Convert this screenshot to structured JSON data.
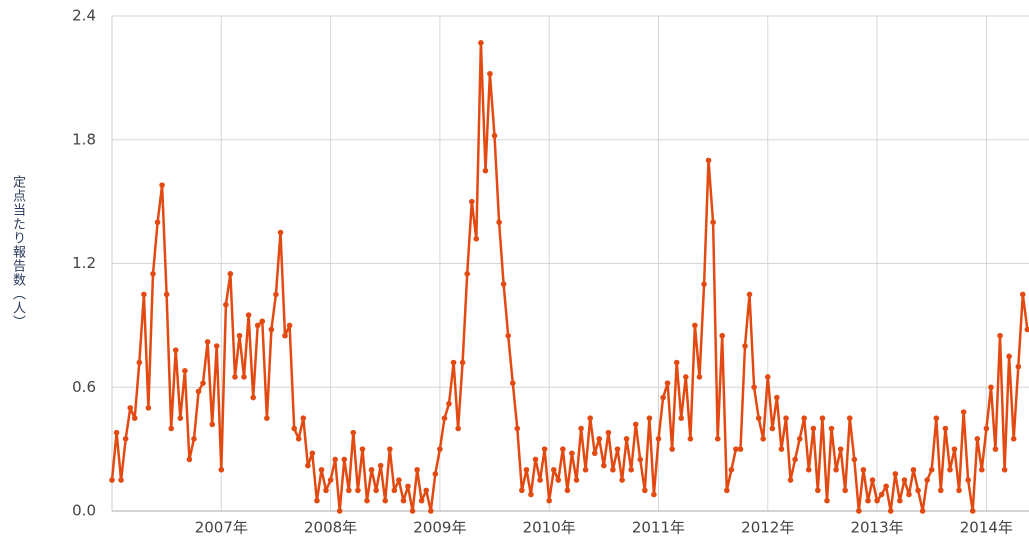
{
  "chart_data": {
    "type": "line",
    "ylabel": "定点当たり報告数（人）",
    "color": "#e34a12",
    "ylim": [
      0,
      2.4
    ],
    "yticks": [
      0.0,
      0.6,
      1.2,
      1.8,
      2.4
    ],
    "y_tick_labels_fixed": 1,
    "xlim": [
      2006,
      2014.39
    ],
    "xticks": [
      {
        "value": 2007,
        "label": "2007年"
      },
      {
        "value": 2008,
        "label": "2008年"
      },
      {
        "value": 2009,
        "label": "2009年"
      },
      {
        "value": 2010,
        "label": "2010年"
      },
      {
        "value": 2011,
        "label": "2011年"
      },
      {
        "value": 2012,
        "label": "2012年"
      },
      {
        "value": 2013,
        "label": "2013年"
      },
      {
        "value": 2014,
        "label": "2014年"
      }
    ],
    "grid": true,
    "x": [
      2006.0,
      2006.042,
      2006.083,
      2006.125,
      2006.167,
      2006.208,
      2006.25,
      2006.292,
      2006.333,
      2006.375,
      2006.417,
      2006.458,
      2006.5,
      2006.542,
      2006.583,
      2006.625,
      2006.667,
      2006.708,
      2006.75,
      2006.792,
      2006.833,
      2006.875,
      2006.917,
      2006.958,
      2007.0,
      2007.042,
      2007.083,
      2007.125,
      2007.167,
      2007.208,
      2007.25,
      2007.292,
      2007.333,
      2007.375,
      2007.417,
      2007.458,
      2007.5,
      2007.542,
      2007.583,
      2007.625,
      2007.667,
      2007.708,
      2007.75,
      2007.792,
      2007.833,
      2007.875,
      2007.917,
      2007.958,
      2008.0,
      2008.042,
      2008.083,
      2008.125,
      2008.167,
      2008.208,
      2008.25,
      2008.292,
      2008.333,
      2008.375,
      2008.417,
      2008.458,
      2008.5,
      2008.542,
      2008.583,
      2008.625,
      2008.667,
      2008.708,
      2008.75,
      2008.792,
      2008.833,
      2008.875,
      2008.917,
      2008.958,
      2009.0,
      2009.042,
      2009.083,
      2009.125,
      2009.167,
      2009.208,
      2009.25,
      2009.292,
      2009.333,
      2009.375,
      2009.417,
      2009.458,
      2009.5,
      2009.542,
      2009.583,
      2009.625,
      2009.667,
      2009.708,
      2009.75,
      2009.792,
      2009.833,
      2009.875,
      2009.917,
      2009.958,
      2010.0,
      2010.042,
      2010.083,
      2010.125,
      2010.167,
      2010.208,
      2010.25,
      2010.292,
      2010.333,
      2010.375,
      2010.417,
      2010.458,
      2010.5,
      2010.542,
      2010.583,
      2010.625,
      2010.667,
      2010.708,
      2010.75,
      2010.792,
      2010.833,
      2010.875,
      2010.917,
      2010.958,
      2011.0,
      2011.042,
      2011.083,
      2011.125,
      2011.167,
      2011.208,
      2011.25,
      2011.292,
      2011.333,
      2011.375,
      2011.417,
      2011.458,
      2011.5,
      2011.542,
      2011.583,
      2011.625,
      2011.667,
      2011.708,
      2011.75,
      2011.792,
      2011.833,
      2011.875,
      2011.917,
      2011.958,
      2012.0,
      2012.042,
      2012.083,
      2012.125,
      2012.167,
      2012.208,
      2012.25,
      2012.292,
      2012.333,
      2012.375,
      2012.417,
      2012.458,
      2012.5,
      2012.542,
      2012.583,
      2012.625,
      2012.667,
      2012.708,
      2012.75,
      2012.792,
      2012.833,
      2012.875,
      2012.917,
      2012.958,
      2013.0,
      2013.042,
      2013.083,
      2013.125,
      2013.167,
      2013.208,
      2013.25,
      2013.292,
      2013.333,
      2013.375,
      2013.417,
      2013.458,
      2013.5,
      2013.542,
      2013.583,
      2013.625,
      2013.667,
      2013.708,
      2013.75,
      2013.792,
      2013.833,
      2013.875,
      2013.917,
      2013.958,
      2014.0,
      2014.042,
      2014.083,
      2014.125,
      2014.167,
      2014.208,
      2014.25,
      2014.292,
      2014.333,
      2014.375
    ],
    "values": [
      0.15,
      0.38,
      0.15,
      0.35,
      0.5,
      0.45,
      0.72,
      1.05,
      0.5,
      1.15,
      1.4,
      1.58,
      1.05,
      0.4,
      0.78,
      0.45,
      0.68,
      0.25,
      0.35,
      0.58,
      0.62,
      0.82,
      0.42,
      0.8,
      0.2,
      1.0,
      1.15,
      0.65,
      0.85,
      0.65,
      0.95,
      0.55,
      0.9,
      0.92,
      0.45,
      0.88,
      1.05,
      1.35,
      0.85,
      0.9,
      0.4,
      0.35,
      0.45,
      0.22,
      0.28,
      0.05,
      0.2,
      0.1,
      0.15,
      0.25,
      0.0,
      0.25,
      0.1,
      0.38,
      0.1,
      0.3,
      0.05,
      0.2,
      0.1,
      0.22,
      0.05,
      0.3,
      0.1,
      0.15,
      0.05,
      0.12,
      0.0,
      0.2,
      0.05,
      0.1,
      0.0,
      0.18,
      0.3,
      0.45,
      0.52,
      0.72,
      0.4,
      0.72,
      1.15,
      1.5,
      1.32,
      2.27,
      1.65,
      2.12,
      1.82,
      1.4,
      1.1,
      0.85,
      0.62,
      0.4,
      0.1,
      0.2,
      0.08,
      0.25,
      0.15,
      0.3,
      0.05,
      0.2,
      0.15,
      0.3,
      0.1,
      0.28,
      0.15,
      0.4,
      0.2,
      0.45,
      0.28,
      0.35,
      0.22,
      0.38,
      0.2,
      0.3,
      0.15,
      0.35,
      0.2,
      0.42,
      0.25,
      0.1,
      0.45,
      0.08,
      0.35,
      0.55,
      0.62,
      0.3,
      0.72,
      0.45,
      0.65,
      0.35,
      0.9,
      0.65,
      1.1,
      1.7,
      1.4,
      0.35,
      0.85,
      0.1,
      0.2,
      0.3,
      0.3,
      0.8,
      1.05,
      0.6,
      0.45,
      0.35,
      0.65,
      0.4,
      0.55,
      0.3,
      0.45,
      0.15,
      0.25,
      0.35,
      0.45,
      0.2,
      0.4,
      0.1,
      0.45,
      0.05,
      0.4,
      0.2,
      0.3,
      0.1,
      0.45,
      0.25,
      0.0,
      0.2,
      0.05,
      0.15,
      0.05,
      0.08,
      0.12,
      0.0,
      0.18,
      0.05,
      0.15,
      0.08,
      0.2,
      0.1,
      0.0,
      0.15,
      0.2,
      0.45,
      0.1,
      0.4,
      0.2,
      0.3,
      0.1,
      0.48,
      0.15,
      0.0,
      0.35,
      0.2,
      0.4,
      0.6,
      0.3,
      0.85,
      0.2,
      0.75,
      0.35,
      0.7,
      1.05,
      0.88
    ]
  }
}
